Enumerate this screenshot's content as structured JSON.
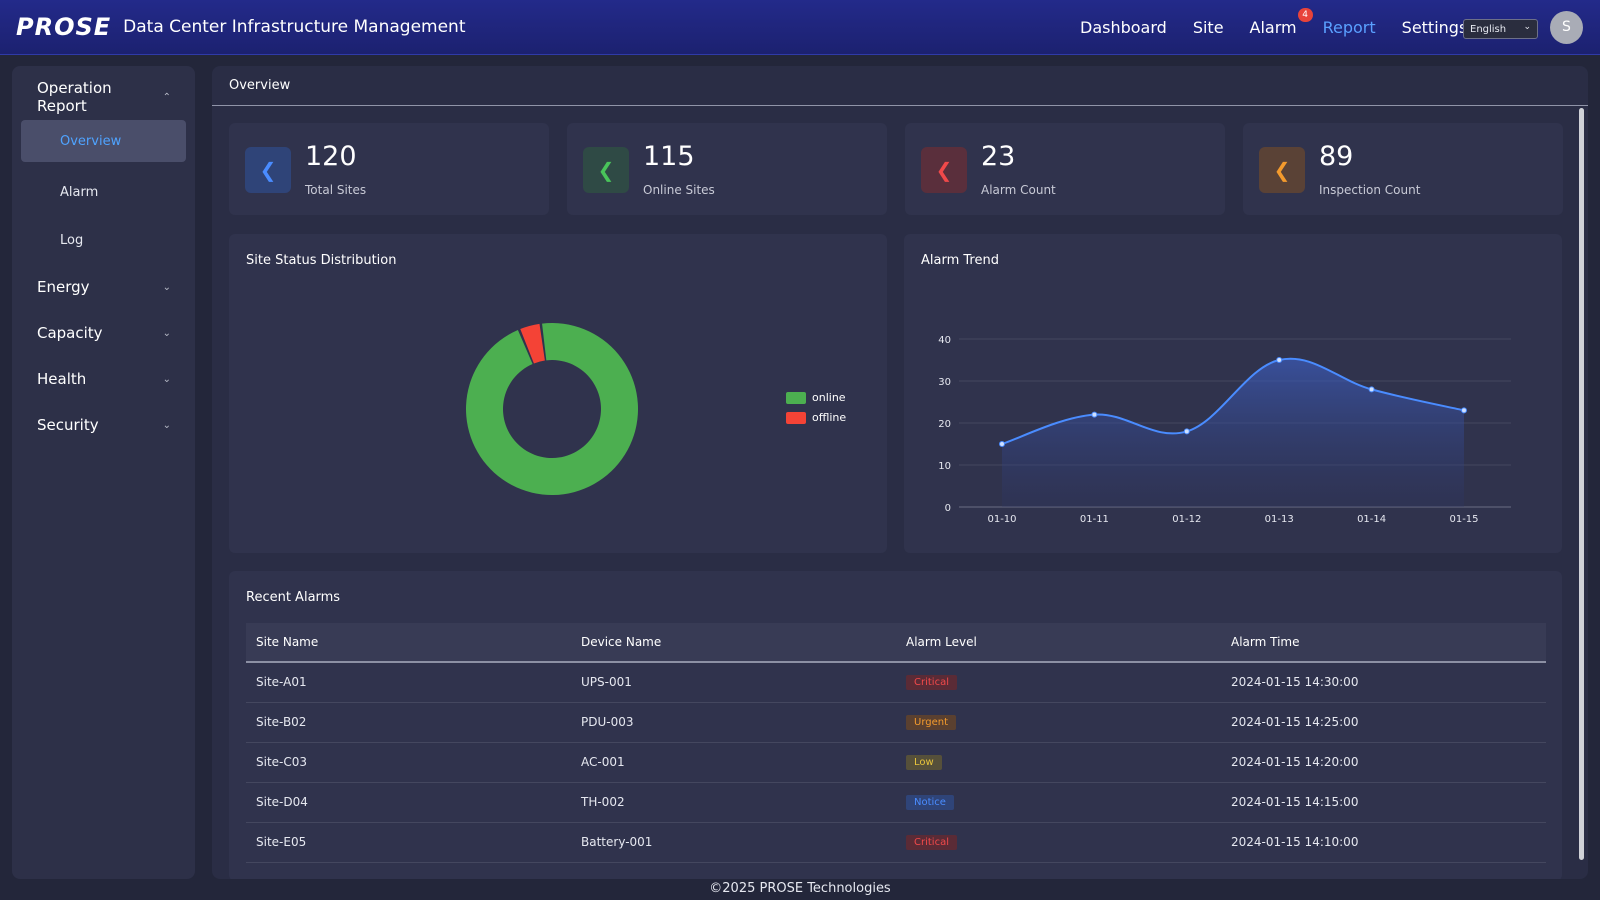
{
  "header": {
    "logo": "PROSE",
    "title": "Data Center Infrastructure Management",
    "nav": [
      {
        "label": "Dashboard",
        "active": false
      },
      {
        "label": "Site",
        "active": false
      },
      {
        "label": "Alarm",
        "active": false,
        "badge": "4"
      },
      {
        "label": "Report",
        "active": true
      },
      {
        "label": "Settings",
        "active": false
      }
    ],
    "language": "English",
    "avatar_initial": "S"
  },
  "sidebar": {
    "groups": [
      {
        "label": "Operation Report",
        "expanded": true,
        "items": [
          "Overview",
          "Alarm",
          "Log"
        ],
        "active_item": "Overview"
      },
      {
        "label": "Energy",
        "expanded": false
      },
      {
        "label": "Capacity",
        "expanded": false
      },
      {
        "label": "Health",
        "expanded": false
      },
      {
        "label": "Security",
        "expanded": false
      }
    ]
  },
  "main": {
    "title": "Overview",
    "stats": [
      {
        "value": "120",
        "label": "Total Sites",
        "color": "#4a8cff",
        "bg": "#2f4478"
      },
      {
        "value": "115",
        "label": "Online Sites",
        "color": "#49c45a",
        "bg": "#2f4a45"
      },
      {
        "value": "23",
        "label": "Alarm Count",
        "color": "#f0494a",
        "bg": "#5a2f3c"
      },
      {
        "value": "89",
        "label": "Inspection Count",
        "color": "#f39a2d",
        "bg": "#5a4236"
      }
    ],
    "distribution_title": "Site Status Distribution",
    "trend_title": "Alarm Trend",
    "recent_alarms": {
      "title": "Recent Alarms",
      "columns": [
        "Site Name",
        "Device Name",
        "Alarm Level",
        "Alarm Time"
      ],
      "rows": [
        {
          "site": "Site-A01",
          "device": "UPS-001",
          "level": "Critical",
          "time": "2024-01-15 14:30:00"
        },
        {
          "site": "Site-B02",
          "device": "PDU-003",
          "level": "Urgent",
          "time": "2024-01-15 14:25:00"
        },
        {
          "site": "Site-C03",
          "device": "AC-001",
          "level": "Low",
          "time": "2024-01-15 14:20:00"
        },
        {
          "site": "Site-D04",
          "device": "TH-002",
          "level": "Notice",
          "time": "2024-01-15 14:15:00"
        },
        {
          "site": "Site-E05",
          "device": "Battery-001",
          "level": "Critical",
          "time": "2024-01-15 14:10:00"
        }
      ],
      "level_colors": {
        "Critical": {
          "fg": "#f0494a",
          "bg": "#5a2b36"
        },
        "Urgent": {
          "fg": "#f39a2d",
          "bg": "#5a4030"
        },
        "Low": {
          "fg": "#e8c43c",
          "bg": "#56503a"
        },
        "Notice": {
          "fg": "#4a8cff",
          "bg": "#2f4478"
        }
      }
    }
  },
  "chart_data": [
    {
      "type": "pie",
      "variant": "donut",
      "title": "Site Status Distribution",
      "categories": [
        "online",
        "offline"
      ],
      "values": [
        115,
        5
      ],
      "colors": [
        "#4caf50",
        "#f44336"
      ],
      "legend": "right"
    },
    {
      "type": "area",
      "title": "Alarm Trend",
      "categories": [
        "01-10",
        "01-11",
        "01-12",
        "01-13",
        "01-14",
        "01-15"
      ],
      "values": [
        15,
        22,
        18,
        35,
        28,
        23
      ],
      "ylim": [
        0,
        40
      ],
      "yticks": [
        0,
        10,
        20,
        30,
        40
      ],
      "color": "#4a8cff",
      "smooth": true,
      "grid": true
    }
  ],
  "footer": "©2025 PROSE Technologies"
}
